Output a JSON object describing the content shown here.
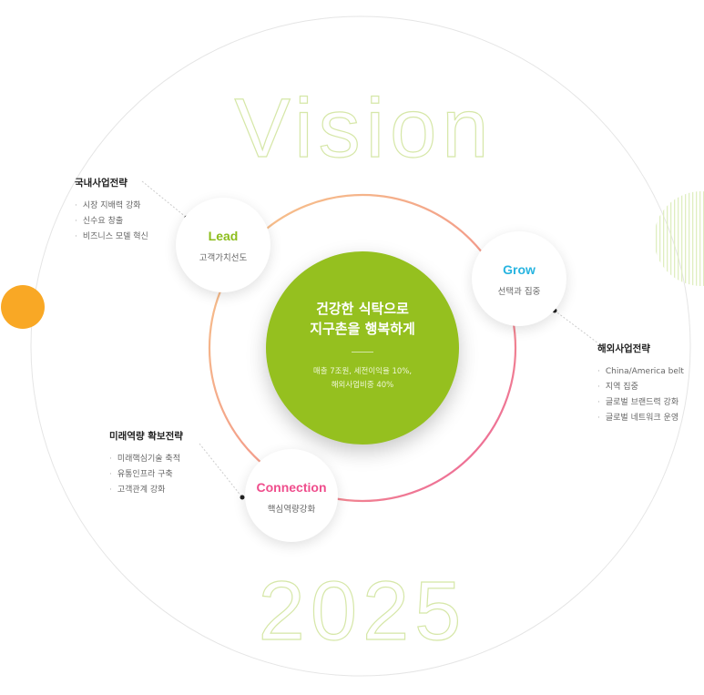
{
  "vision_word": "Vision",
  "year": "2025",
  "center": {
    "headline_line1": "건강한 식탁으로",
    "headline_line2": "지구촌을 행복하게",
    "goal_line1": "매출 7조원, 세전이익율 10%,",
    "goal_line2": "해외사업비중 40%"
  },
  "nodes": {
    "lead": {
      "title": "Lead",
      "subtitle": "고객가치선도",
      "color": "#8cbd1c"
    },
    "grow": {
      "title": "Grow",
      "subtitle": "선택과 집중",
      "color": "#27b4e0"
    },
    "connection": {
      "title": "Connection",
      "subtitle": "핵심역량강화",
      "color": "#ef4d8c"
    }
  },
  "groups": {
    "domestic": {
      "title": "국내사업전략",
      "items": [
        "시장 지배력 강화",
        "신수요 창출",
        "비즈니스 모델 혁신"
      ]
    },
    "overseas": {
      "title": "해외사업전략",
      "items": [
        "China/America belt",
        "지역 집중",
        "글로벌 브랜드력 강화",
        "글로벌 네트워크 운영"
      ]
    },
    "future": {
      "title": "미래역량 확보전략",
      "items": [
        "미래핵심기술 축적",
        "유통인프라 구축",
        "고객관계 강화"
      ]
    }
  },
  "colors": {
    "accent_green": "#95c01f",
    "orange_dot": "#f9a825",
    "ring_start": "#f7b777",
    "ring_end": "#ef5f96"
  }
}
